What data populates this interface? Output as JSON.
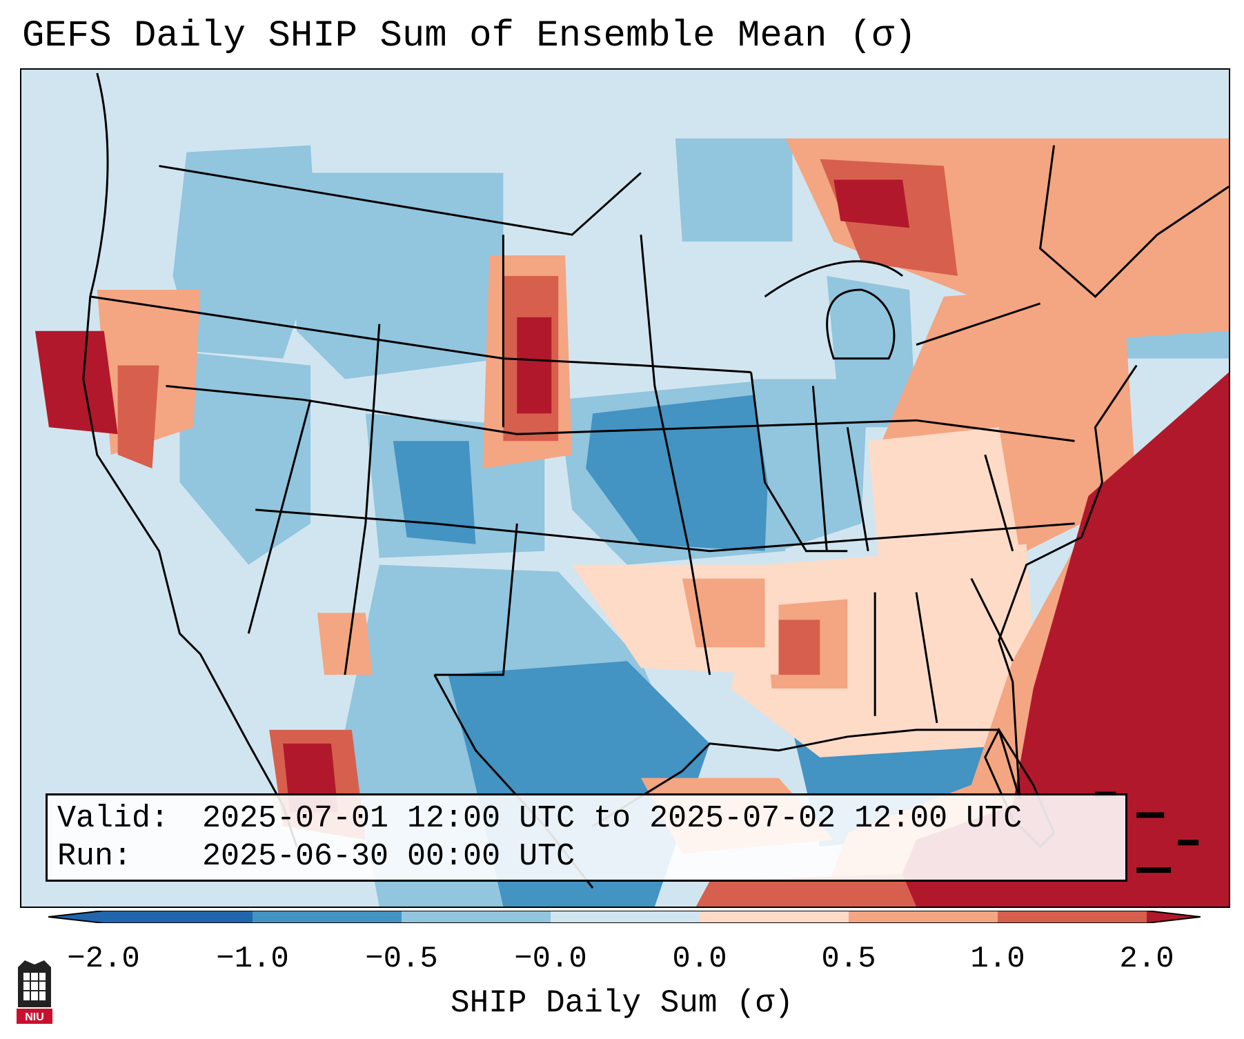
{
  "title": "GEFS Daily SHIP Sum of Ensemble Mean (σ)",
  "info": {
    "valid_label": "Valid:",
    "valid_value": "2025-07-01 12:00 UTC to 2025-07-02 12:00 UTC",
    "run_label": "Run:",
    "run_value": "2025-06-30 00:00 UTC"
  },
  "colorbar": {
    "label": "SHIP Daily Sum (σ)",
    "ticks": [
      "−2.0",
      "−1.0",
      "−0.5",
      "−0.0",
      "0.0",
      "0.5",
      "1.0",
      "2.0"
    ],
    "colors": [
      "#2166ac",
      "#4393c3",
      "#92c5de",
      "#d1e5f0",
      "#fddbc7",
      "#f4a582",
      "#d6604d",
      "#b2182b"
    ]
  },
  "logo": {
    "text": "NIU"
  }
}
